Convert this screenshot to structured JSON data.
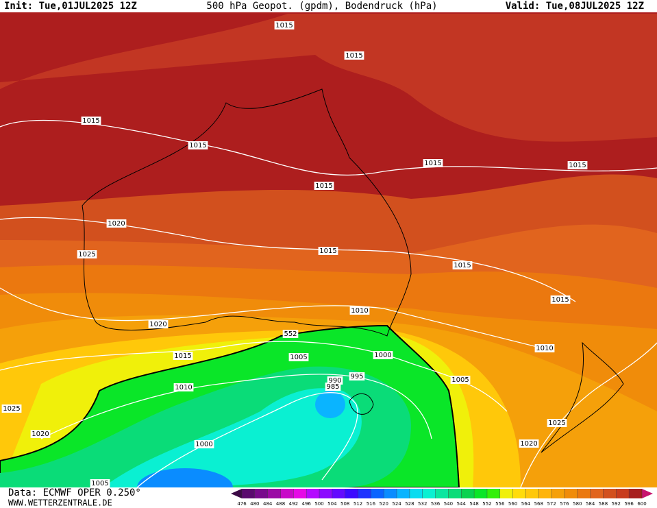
{
  "header": {
    "init": "Init: Tue,01JUL2025 12Z",
    "title": "500 hPa Geopot. (gpdm), Bodendruck (hPa)",
    "valid": "Valid: Tue,08JUL2025 12Z"
  },
  "isobar_labels": [
    "1015",
    "1015",
    "1015",
    "1015",
    "1015",
    "1015",
    "1015",
    "1020",
    "1015",
    "1025",
    "1015",
    "1015",
    "1010",
    "1020",
    "552",
    "1015",
    "1005",
    "1000",
    "1010",
    "995",
    "990",
    "985",
    "1005",
    "1010",
    "1025",
    "1020",
    "1025",
    "1020",
    "1000",
    "1005"
  ],
  "colorbar": {
    "ticks": [
      476,
      480,
      484,
      488,
      492,
      496,
      500,
      504,
      508,
      512,
      516,
      520,
      524,
      528,
      532,
      536,
      540,
      544,
      548,
      552,
      556,
      560,
      564,
      568,
      572,
      576,
      580,
      584,
      588,
      592,
      596,
      600
    ],
    "colors": [
      "#5a0a6e",
      "#780a8c",
      "#9b0aa5",
      "#c80ac8",
      "#e60ae6",
      "#b40aff",
      "#8c0aff",
      "#640aff",
      "#3c0aff",
      "#1e32ff",
      "#0a64ff",
      "#0a8cff",
      "#0ab4ff",
      "#0adcf0",
      "#0af0d2",
      "#0ae6a0",
      "#0adc78",
      "#0ad250",
      "#0ae628",
      "#32f00a",
      "#f0f00a",
      "#ffdc0a",
      "#ffc80a",
      "#ffb40a",
      "#f5a00a",
      "#f08c0a",
      "#eb780f",
      "#e1641e",
      "#d2501e",
      "#c83c1e",
      "#a81e1e"
    ]
  },
  "footer": {
    "data": "Data: ECMWF OPER 0.250°",
    "site": "WWW.WETTERZENTRALE.DE"
  }
}
